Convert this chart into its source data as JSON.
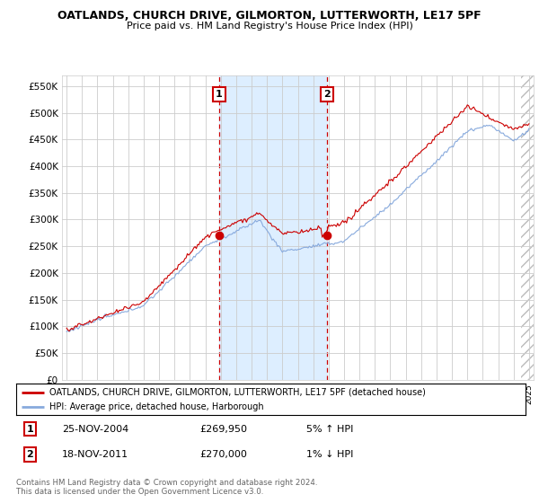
{
  "title1": "OATLANDS, CHURCH DRIVE, GILMORTON, LUTTERWORTH, LE17 5PF",
  "title2": "Price paid vs. HM Land Registry's House Price Index (HPI)",
  "ylim": [
    0,
    570000
  ],
  "yticks": [
    0,
    50000,
    100000,
    150000,
    200000,
    250000,
    300000,
    350000,
    400000,
    450000,
    500000,
    550000
  ],
  "ytick_labels": [
    "£0",
    "£50K",
    "£100K",
    "£150K",
    "£200K",
    "£250K",
    "£300K",
    "£350K",
    "£400K",
    "£450K",
    "£500K",
    "£550K"
  ],
  "year_start": 1995,
  "year_end": 2025,
  "sale1_year": 2004.9,
  "sale1_price": 269950,
  "sale1_label": "1",
  "sale1_date": "25-NOV-2004",
  "sale1_hpi": "5% ↑ HPI",
  "sale2_year": 2011.9,
  "sale2_price": 270000,
  "sale2_label": "2",
  "sale2_date": "18-NOV-2011",
  "sale2_hpi": "1% ↓ HPI",
  "legend_red": "OATLANDS, CHURCH DRIVE, GILMORTON, LUTTERWORTH, LE17 5PF (detached house)",
  "legend_blue": "HPI: Average price, detached house, Harborough",
  "footer1": "Contains HM Land Registry data © Crown copyright and database right 2024.",
  "footer2": "This data is licensed under the Open Government Licence v3.0.",
  "bg_shade_color": "#ddeeff",
  "line_red": "#cc0000",
  "line_blue": "#88aadd",
  "grid_color": "#cccccc",
  "hatch_color": "#bbbbbb"
}
